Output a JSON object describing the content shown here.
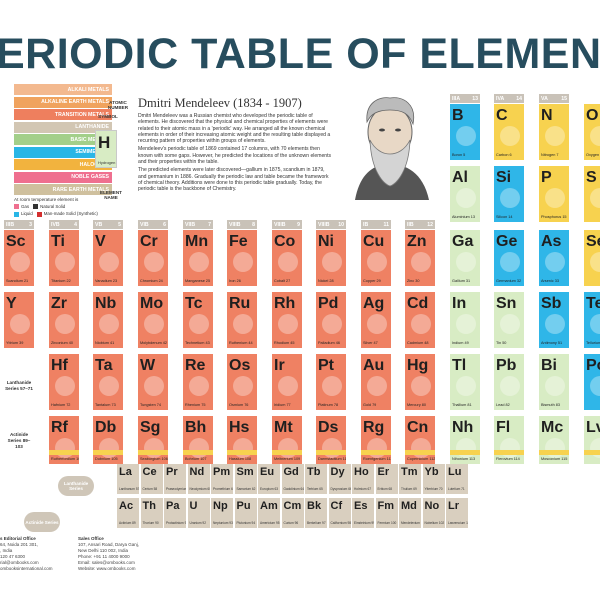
{
  "title": "ERIODIC TABLE OF ELEMENT",
  "legend": {
    "items": [
      {
        "label": "ALKALI METALS",
        "color": "#f3b98f"
      },
      {
        "label": "ALKALINE EARTH METALS",
        "color": "#f0a35e"
      },
      {
        "label": "TRANSITION METALS",
        "color": "#ee7f5e"
      },
      {
        "label": "LANTHANIDE",
        "color": "#d2c6b3"
      },
      {
        "label": "BASIC METALS",
        "color": "#a3cf8a"
      },
      {
        "label": "SEMIMETALS",
        "color": "#29b6e6"
      },
      {
        "label": "HALOGENS",
        "color": "#f2b33e"
      },
      {
        "label": "NOBLE GASES",
        "color": "#ef6f8f"
      },
      {
        "label": "RARE EARTH METALS",
        "color": "#cfc09e"
      }
    ],
    "note": "At room temperature element is",
    "states": [
      "Gas",
      "Natural Solid",
      "Liquid",
      "Man-made Solid (Synthetic)"
    ]
  },
  "key": {
    "atomic_number": "ATOMIC NUMBER",
    "symbol_label": "SYMBOL",
    "symbol": "H",
    "name": "Hydrogen",
    "element_name": "ELEMENT NAME"
  },
  "bio": {
    "title": "Dmitri Mendeleev (1834 - 1907)",
    "p1": "Dmitri Mendeleev was a Russian chemist who developed the periodic table of elements. He discovered that the physical and chemical properties of elements were related to their atomic mass in a 'periodic' way. He arranged all the known chemical elements in order of their increasing atomic weight and the resulting table displayed a recurring pattern of properties within groups of elements.",
    "p2": "Mendeleev's periodic table of 1869 contained 17 columns, with 70 elements then known with some gaps. However, he predicted the locations of the unknown elements and their properties within the table.",
    "p3": "The predicted elements were later discovered—gallium in 1875, scandium in 1879, and germanium in 1886. Gradually the periodic law and table became the framework of chemical theory. Additions were done to this periodic table gradually. Today, the periodic table is the backbone of Chemistry."
  },
  "groups": [
    {
      "label": "IIIB",
      "num": "3"
    },
    {
      "label": "IVB",
      "num": "4"
    },
    {
      "label": "VB",
      "num": "5"
    },
    {
      "label": "VIB",
      "num": "6"
    },
    {
      "label": "VIIB",
      "num": "7"
    },
    {
      "label": "VIIIB",
      "num": "8"
    },
    {
      "label": "VIIIB",
      "num": "9"
    },
    {
      "label": "VIIIB",
      "num": "10"
    },
    {
      "label": "IB",
      "num": "11"
    },
    {
      "label": "IIB",
      "num": "12"
    },
    {
      "label": "IIIA",
      "num": "13"
    },
    {
      "label": "IVA",
      "num": "14"
    },
    {
      "label": "VA",
      "num": "15"
    }
  ],
  "rows": [
    [
      {
        "sym": "",
        "name": ""
      },
      {
        "sym": "",
        "name": ""
      },
      {
        "sym": "",
        "name": ""
      },
      {
        "sym": "",
        "name": ""
      },
      {
        "sym": "",
        "name": ""
      },
      {
        "sym": "",
        "name": ""
      },
      {
        "sym": "",
        "name": ""
      },
      {
        "sym": "",
        "name": ""
      },
      {
        "sym": "",
        "name": ""
      },
      {
        "sym": "",
        "name": ""
      },
      {
        "sym": "B",
        "name": "Boron 5",
        "cat": "semi"
      },
      {
        "sym": "C",
        "name": "Carbon 6",
        "cat": "nonmetal"
      },
      {
        "sym": "N",
        "name": "Nitrogen 7",
        "cat": "nonmetal"
      },
      {
        "sym": "O",
        "name": "Oxygen",
        "cat": "nonmetal"
      }
    ],
    [
      {
        "sym": "",
        "name": ""
      },
      {
        "sym": "",
        "name": ""
      },
      {
        "sym": "",
        "name": ""
      },
      {
        "sym": "",
        "name": ""
      },
      {
        "sym": "",
        "name": ""
      },
      {
        "sym": "",
        "name": ""
      },
      {
        "sym": "",
        "name": ""
      },
      {
        "sym": "",
        "name": ""
      },
      {
        "sym": "",
        "name": ""
      },
      {
        "sym": "",
        "name": ""
      },
      {
        "sym": "Al",
        "name": "Aluminium 13",
        "cat": "basic"
      },
      {
        "sym": "Si",
        "name": "Silicon 14",
        "cat": "semi"
      },
      {
        "sym": "P",
        "name": "Phosphorus 15",
        "cat": "nonmetal"
      },
      {
        "sym": "S",
        "name": "",
        "cat": "nonmetal"
      }
    ],
    [
      {
        "sym": "Sc",
        "name": "Scandium 21",
        "cat": "trans"
      },
      {
        "sym": "Ti",
        "name": "Titanium 22",
        "cat": "trans"
      },
      {
        "sym": "V",
        "name": "Vanadium 23",
        "cat": "trans"
      },
      {
        "sym": "Cr",
        "name": "Chromium 24",
        "cat": "trans"
      },
      {
        "sym": "Mn",
        "name": "Manganese 25",
        "cat": "trans"
      },
      {
        "sym": "Fe",
        "name": "Iron 26",
        "cat": "trans"
      },
      {
        "sym": "Co",
        "name": "Cobalt 27",
        "cat": "trans"
      },
      {
        "sym": "Ni",
        "name": "Nickel 28",
        "cat": "trans"
      },
      {
        "sym": "Cu",
        "name": "Copper 29",
        "cat": "trans"
      },
      {
        "sym": "Zn",
        "name": "Zinc 30",
        "cat": "trans"
      },
      {
        "sym": "Ga",
        "name": "Gallium 31",
        "cat": "basic"
      },
      {
        "sym": "Ge",
        "name": "Germanium 32",
        "cat": "semi"
      },
      {
        "sym": "As",
        "name": "Arsenic 33",
        "cat": "semi"
      },
      {
        "sym": "Se",
        "name": "",
        "cat": "nonmetal"
      }
    ],
    [
      {
        "sym": "Y",
        "name": "Yttrium 39",
        "cat": "trans"
      },
      {
        "sym": "Zr",
        "name": "Zirconium 40",
        "cat": "trans"
      },
      {
        "sym": "Nb",
        "name": "Niobium 41",
        "cat": "trans"
      },
      {
        "sym": "Mo",
        "name": "Molybdenum 42",
        "cat": "trans"
      },
      {
        "sym": "Tc",
        "name": "Technetium 43",
        "cat": "trans"
      },
      {
        "sym": "Ru",
        "name": "Ruthenium 44",
        "cat": "trans"
      },
      {
        "sym": "Rh",
        "name": "Rhodium 45",
        "cat": "trans"
      },
      {
        "sym": "Pd",
        "name": "Palladium 46",
        "cat": "trans"
      },
      {
        "sym": "Ag",
        "name": "Silver 47",
        "cat": "trans"
      },
      {
        "sym": "Cd",
        "name": "Cadmium 48",
        "cat": "trans"
      },
      {
        "sym": "In",
        "name": "Indium 49",
        "cat": "basic"
      },
      {
        "sym": "Sn",
        "name": "Tin 50",
        "cat": "basic"
      },
      {
        "sym": "Sb",
        "name": "Antimony 51",
        "cat": "semi"
      },
      {
        "sym": "Te",
        "name": "Tellurium",
        "cat": "semi"
      }
    ],
    [
      {
        "sym": "",
        "name": ""
      },
      {
        "sym": "Hf",
        "name": "Hafnium 72",
        "cat": "trans"
      },
      {
        "sym": "Ta",
        "name": "Tantalum 73",
        "cat": "trans"
      },
      {
        "sym": "W",
        "name": "Tungsten 74",
        "cat": "trans"
      },
      {
        "sym": "Re",
        "name": "Rhenium 75",
        "cat": "trans"
      },
      {
        "sym": "Os",
        "name": "Osmium 76",
        "cat": "trans"
      },
      {
        "sym": "Ir",
        "name": "Iridium 77",
        "cat": "trans"
      },
      {
        "sym": "Pt",
        "name": "Platinum 78",
        "cat": "trans"
      },
      {
        "sym": "Au",
        "name": "Gold 79",
        "cat": "trans"
      },
      {
        "sym": "Hg",
        "name": "Mercury 80",
        "cat": "trans"
      },
      {
        "sym": "Tl",
        "name": "Thallium 81",
        "cat": "basic"
      },
      {
        "sym": "Pb",
        "name": "Lead 82",
        "cat": "basic"
      },
      {
        "sym": "Bi",
        "name": "Bismuth 83",
        "cat": "basic"
      },
      {
        "sym": "Po",
        "name": "",
        "cat": "semi"
      }
    ],
    [
      {
        "sym": "",
        "name": ""
      },
      {
        "sym": "Rf",
        "name": "Rutherfordium 104",
        "cat": "trans"
      },
      {
        "sym": "Db",
        "name": "Dubnium 105",
        "cat": "trans"
      },
      {
        "sym": "Sg",
        "name": "Seaborgium 106",
        "cat": "trans"
      },
      {
        "sym": "Bh",
        "name": "Bohrium 107",
        "cat": "trans"
      },
      {
        "sym": "Hs",
        "name": "Hassium 108",
        "cat": "trans"
      },
      {
        "sym": "Mt",
        "name": "Meitnerium 109",
        "cat": "trans"
      },
      {
        "sym": "Ds",
        "name": "Darmstadtium 110",
        "cat": "trans"
      },
      {
        "sym": "Rg",
        "name": "Roentgenium 111",
        "cat": "trans"
      },
      {
        "sym": "Cn",
        "name": "Copernicium 112",
        "cat": "trans"
      },
      {
        "sym": "Nh",
        "name": "Nihonium 113",
        "cat": "basic"
      },
      {
        "sym": "Fl",
        "name": "Flerovium 114",
        "cat": "basic"
      },
      {
        "sym": "Mc",
        "name": "Moscovium 115",
        "cat": "basic"
      },
      {
        "sym": "Lv",
        "name": "",
        "cat": "basic"
      }
    ]
  ],
  "series_labels": {
    "lanthanide": "Lanthanide Series 57–71",
    "actinide": "Actinide Series 89–103"
  },
  "lanthanides": [
    {
      "sym": "La",
      "name": "Lanthanum 57"
    },
    {
      "sym": "Ce",
      "name": "Cerium 58"
    },
    {
      "sym": "Pr",
      "name": "Praseodymium 59"
    },
    {
      "sym": "Nd",
      "name": "Neodymium 60"
    },
    {
      "sym": "Pm",
      "name": "Promethium 61"
    },
    {
      "sym": "Sm",
      "name": "Samarium 62"
    },
    {
      "sym": "Eu",
      "name": "Europium 63"
    },
    {
      "sym": "Gd",
      "name": "Gadolinium 64"
    },
    {
      "sym": "Tb",
      "name": "Terbium 65"
    },
    {
      "sym": "Dy",
      "name": "Dysprosium 66"
    },
    {
      "sym": "Ho",
      "name": "Holmium 67"
    },
    {
      "sym": "Er",
      "name": "Erbium 68"
    },
    {
      "sym": "Tm",
      "name": "Thulium 69"
    },
    {
      "sym": "Yb",
      "name": "Ytterbium 70"
    },
    {
      "sym": "Lu",
      "name": "Lutetium 71"
    }
  ],
  "actinides": [
    {
      "sym": "Ac",
      "name": "Actinium 89"
    },
    {
      "sym": "Th",
      "name": "Thorium 90"
    },
    {
      "sym": "Pa",
      "name": "Protactinium 91"
    },
    {
      "sym": "U",
      "name": "Uranium 92"
    },
    {
      "sym": "Np",
      "name": "Neptunium 93"
    },
    {
      "sym": "Pu",
      "name": "Plutonium 94"
    },
    {
      "sym": "Am",
      "name": "Americium 95"
    },
    {
      "sym": "Cm",
      "name": "Curium 96"
    },
    {
      "sym": "Bk",
      "name": "Berkelium 97"
    },
    {
      "sym": "Cf",
      "name": "Californium 98"
    },
    {
      "sym": "Es",
      "name": "Einsteinium 99"
    },
    {
      "sym": "Fm",
      "name": "Fermium 100"
    },
    {
      "sym": "Md",
      "name": "Mendelevium 101"
    },
    {
      "sym": "No",
      "name": "Nobelium 102"
    },
    {
      "sym": "Lr",
      "name": "Lawrencium 103"
    }
  ],
  "badges": {
    "lanthanide": "Lanthanide Series",
    "actinide": "Actinide Series"
  },
  "footer": {
    "left_title": "s Editorial Office",
    "left_lines": [
      "64, Noida 201 301,",
      ", India",
      "120 47 6300",
      "rial@ombooks.com",
      "ombooksinternational.com"
    ],
    "right_title": "Sales Office",
    "right_lines": [
      "107, Ansari Road, Darya Ganj,",
      "New Delhi 110 002, India",
      "Phone: +91 11 4000 9000",
      "Email: sales@ombooks.com",
      "Website: www.ombooks.com"
    ]
  },
  "colors": {
    "trans": "#ef8163",
    "basic": "#d8ecc4",
    "semi": "#2fb6e8",
    "nonmetal": "#f7d24f",
    "lanth": "#d9cfbf",
    "group_header": "#c9c2b8",
    "title": "#274d5e"
  }
}
